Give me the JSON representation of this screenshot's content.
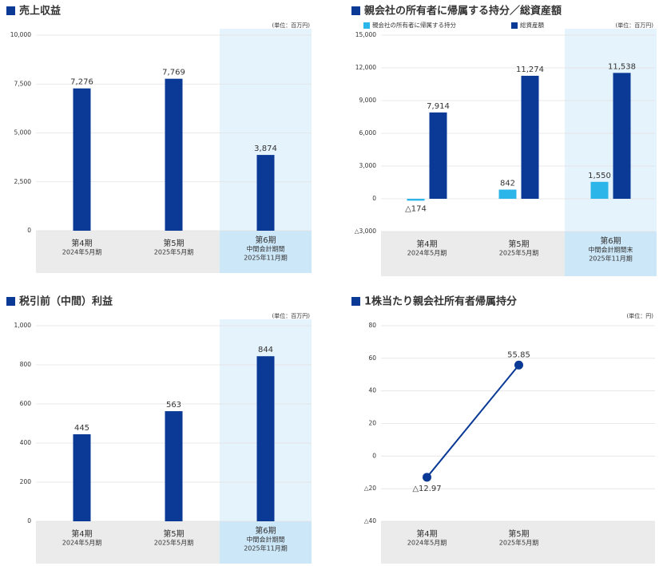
{
  "chart_data": [
    {
      "type": "bar",
      "title": "売上収益",
      "unit": "(単位：百万円)",
      "categories": [
        [
          "第4期",
          "2024年5月期"
        ],
        [
          "第5期",
          "2025年5月期"
        ],
        [
          "第6期",
          "中間会計期間",
          "2025年11月期"
        ]
      ],
      "values": [
        7276,
        7769,
        3874
      ],
      "value_labels": [
        "7,276",
        "7,769",
        "3,874"
      ],
      "color": "#0a3a96",
      "ylim": [
        0,
        10000
      ],
      "yticks": [
        0,
        {
          "value": 2500,
          "label": "2,500"
        },
        {
          "value": 5000,
          "label": "5,000"
        },
        {
          "value": 7500,
          "label": "7,500"
        },
        {
          "value": 10000,
          "label": "10,000"
        }
      ],
      "grid": true
    },
    {
      "type": "bar",
      "title": "親会社の所有者に帰属する持分／総資産額",
      "unit": "(単位：百万円)",
      "categories": [
        [
          "第4期",
          "2024年5月期"
        ],
        [
          "第5期",
          "2025年5月期"
        ],
        [
          "第6期",
          "中間会計期間末",
          "2025年11月期"
        ]
      ],
      "series": [
        {
          "name": "親会社の所有者に帰属する持分",
          "color": "#2cb5e9",
          "values": [
            -174,
            842,
            1550
          ],
          "value_labels": [
            "△174",
            "842",
            "1,550"
          ]
        },
        {
          "name": "総資産額",
          "color": "#0a3a96",
          "values": [
            7914,
            11274,
            11538
          ],
          "value_labels": [
            "7,914",
            "11,274",
            "11,538"
          ]
        }
      ],
      "ylim": [
        -3000,
        15000
      ],
      "yticks": [
        {
          "value": -3000,
          "label": "△3,000"
        },
        0,
        {
          "value": 3000,
          "label": "3,000"
        },
        {
          "value": 6000,
          "label": "6,000"
        },
        {
          "value": 9000,
          "label": "9,000"
        },
        {
          "value": 12000,
          "label": "12,000"
        },
        {
          "value": 15000,
          "label": "15,000"
        }
      ],
      "grid": true
    },
    {
      "type": "bar",
      "title": "税引前（中間）利益",
      "unit": "(単位：百万円)",
      "categories": [
        [
          "第4期",
          "2024年5月期"
        ],
        [
          "第5期",
          "2025年5月期"
        ],
        [
          "第6期",
          "中間会計期間",
          "2025年11月期"
        ]
      ],
      "values": [
        445,
        563,
        844
      ],
      "color": "#0a3a96",
      "ylim": [
        0,
        1000
      ],
      "yticks": [
        0,
        200,
        400,
        600,
        800,
        {
          "value": 1000,
          "label": "1,000"
        }
      ],
      "grid": true
    },
    {
      "type": "line",
      "title": "1株当たり親会社所有者帰属持分",
      "unit": "(単位：円)",
      "categories": [
        [
          "第4期",
          "2024年5月期"
        ],
        [
          "第5期",
          "2025年5月期"
        ]
      ],
      "values": [
        -12.97,
        55.85
      ],
      "value_labels": [
        "△12.97",
        "55.85"
      ],
      "color": "#0a3a96",
      "ylim": [
        -40,
        80
      ],
      "yticks": [
        {
          "value": -40,
          "label": "△40"
        },
        {
          "value": -20,
          "label": "△20"
        },
        0,
        20,
        40,
        60,
        80
      ],
      "grid": true
    }
  ]
}
